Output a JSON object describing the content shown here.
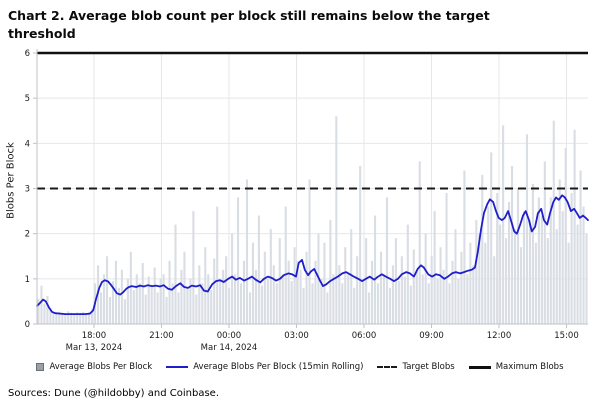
{
  "title": "Chart 2. Average blob count per block still remains below the target threshold",
  "source_note": "Sources: Dune (@hildobby) and Coinbase.",
  "colors": {
    "background": "#ffffff",
    "bar": "#d9dde4",
    "rolling_line": "#1e1ecb",
    "target_line": "#1a1a1a",
    "maximum_line": "#111111",
    "grid": "#e7e7ea",
    "axis": "#c2c2c8",
    "tick_text": "#1a1a1a"
  },
  "legend": {
    "items": [
      {
        "label": "Average Blobs Per Block",
        "marker": "square",
        "color": "#9aa0a6"
      },
      {
        "label": "Average Blobs Per Block (15min Rolling)",
        "marker": "line",
        "color": "#1e1ecb"
      },
      {
        "label": "Target Blobs",
        "marker": "dashed-line",
        "color": "#1a1a1a"
      },
      {
        "label": "Maximum Blobs",
        "marker": "solid-line",
        "color": "#111111"
      }
    ]
  },
  "chart_data": {
    "type": "bar",
    "title": "Chart 2. Average blob count per block still remains below the target threshold",
    "xlabel": "",
    "ylabel": "Blobs Per Block",
    "ylim": [
      0,
      6
    ],
    "yticks": [
      0,
      1,
      2,
      3,
      4,
      5,
      6
    ],
    "grid": true,
    "legend_position": "bottom",
    "target_blobs": 3,
    "maximum_blobs": 6,
    "xticks": [
      {
        "label": "18:00",
        "t": 0.1034,
        "sub": "Mar 13, 2024"
      },
      {
        "label": "21:00",
        "t": 0.2259
      },
      {
        "label": "00:00",
        "t": 0.3484,
        "sub": "Mar 14, 2024"
      },
      {
        "label": "03:00",
        "t": 0.471
      },
      {
        "label": "06:00",
        "t": 0.5935
      },
      {
        "label": "09:00",
        "t": 0.716
      },
      {
        "label": "12:00",
        "t": 0.8385
      },
      {
        "label": "15:00",
        "t": 0.961
      }
    ],
    "series": [
      {
        "name": "Average Blobs Per Block",
        "type": "bar",
        "color": "#d9dde4",
        "values": [
          0.55,
          0.85,
          0.45,
          0.62,
          0.35,
          0.26,
          0.24,
          0.27,
          0.25,
          0.24,
          0.28,
          0.25,
          0.24,
          0.26,
          0.25,
          0.27,
          0.24,
          0.26,
          0.34,
          0.9,
          1.3,
          0.7,
          1.1,
          1.5,
          0.6,
          0.95,
          1.4,
          0.8,
          1.2,
          0.55,
          1.0,
          1.6,
          0.75,
          1.1,
          0.9,
          1.35,
          0.65,
          1.05,
          0.85,
          1.25,
          0.7,
          1.0,
          1.1,
          0.6,
          1.4,
          0.9,
          2.2,
          0.7,
          1.2,
          1.6,
          0.8,
          1.0,
          2.5,
          0.65,
          1.3,
          0.9,
          1.7,
          1.1,
          0.75,
          1.45,
          2.6,
          0.95,
          1.2,
          1.5,
          0.8,
          2.0,
          1.1,
          2.8,
          0.9,
          1.4,
          3.2,
          0.7,
          1.8,
          1.2,
          2.4,
          0.85,
          1.6,
          1.0,
          2.1,
          1.3,
          0.9,
          1.9,
          1.1,
          2.6,
          1.4,
          0.95,
          1.7,
          1.4,
          1.2,
          0.8,
          1.6,
          3.2,
          0.9,
          1.4,
          2.0,
          1.0,
          1.8,
          0.7,
          2.3,
          1.1,
          4.6,
          1.3,
          0.9,
          1.7,
          1.1,
          2.1,
          0.8,
          1.5,
          3.5,
          1.0,
          1.9,
          0.7,
          1.4,
          2.4,
          0.9,
          1.6,
          1.1,
          2.8,
          0.8,
          1.3,
          1.9,
          0.95,
          1.5,
          1.05,
          2.2,
          0.85,
          1.65,
          1.2,
          3.6,
          1.1,
          2.0,
          0.9,
          1.5,
          2.5,
          1.0,
          1.7,
          1.2,
          2.9,
          0.9,
          1.4,
          2.1,
          1.0,
          1.6,
          3.4,
          1.1,
          1.8,
          1.3,
          2.3,
          2.0,
          3.3,
          1.8,
          2.6,
          3.8,
          1.5,
          2.9,
          2.2,
          4.4,
          1.9,
          2.7,
          3.5,
          2.1,
          3.0,
          1.7,
          2.5,
          4.2,
          2.3,
          3.1,
          1.8,
          2.8,
          2.4,
          3.6,
          1.9,
          2.8,
          4.5,
          2.1,
          3.2,
          2.5,
          3.9,
          1.8,
          2.9,
          4.3,
          2.2,
          3.4,
          2.6,
          2.0
        ]
      },
      {
        "name": "Average Blobs Per Block (15min Rolling)",
        "type": "line",
        "color": "#1e1ecb",
        "points": [
          [
            0.0,
            0.4
          ],
          [
            0.005,
            0.46
          ],
          [
            0.011,
            0.54
          ],
          [
            0.016,
            0.5
          ],
          [
            0.022,
            0.36
          ],
          [
            0.027,
            0.27
          ],
          [
            0.033,
            0.24
          ],
          [
            0.042,
            0.23
          ],
          [
            0.051,
            0.22
          ],
          [
            0.06,
            0.22
          ],
          [
            0.069,
            0.22
          ],
          [
            0.078,
            0.22
          ],
          [
            0.087,
            0.22
          ],
          [
            0.096,
            0.23
          ],
          [
            0.102,
            0.3
          ],
          [
            0.107,
            0.55
          ],
          [
            0.113,
            0.8
          ],
          [
            0.118,
            0.93
          ],
          [
            0.123,
            0.97
          ],
          [
            0.129,
            0.94
          ],
          [
            0.134,
            0.87
          ],
          [
            0.14,
            0.77
          ],
          [
            0.145,
            0.68
          ],
          [
            0.151,
            0.65
          ],
          [
            0.156,
            0.7
          ],
          [
            0.162,
            0.78
          ],
          [
            0.167,
            0.82
          ],
          [
            0.172,
            0.84
          ],
          [
            0.18,
            0.82
          ],
          [
            0.187,
            0.85
          ],
          [
            0.194,
            0.83
          ],
          [
            0.201,
            0.86
          ],
          [
            0.209,
            0.84
          ],
          [
            0.216,
            0.85
          ],
          [
            0.223,
            0.83
          ],
          [
            0.23,
            0.86
          ],
          [
            0.238,
            0.78
          ],
          [
            0.245,
            0.76
          ],
          [
            0.252,
            0.84
          ],
          [
            0.26,
            0.9
          ],
          [
            0.267,
            0.82
          ],
          [
            0.274,
            0.8
          ],
          [
            0.281,
            0.85
          ],
          [
            0.289,
            0.83
          ],
          [
            0.296,
            0.86
          ],
          [
            0.303,
            0.74
          ],
          [
            0.31,
            0.72
          ],
          [
            0.318,
            0.88
          ],
          [
            0.325,
            0.95
          ],
          [
            0.332,
            0.97
          ],
          [
            0.339,
            0.93
          ],
          [
            0.347,
            1.0
          ],
          [
            0.354,
            1.05
          ],
          [
            0.361,
            0.98
          ],
          [
            0.368,
            1.02
          ],
          [
            0.376,
            0.96
          ],
          [
            0.383,
            1.0
          ],
          [
            0.39,
            1.05
          ],
          [
            0.397,
            0.98
          ],
          [
            0.405,
            0.92
          ],
          [
            0.412,
            1.0
          ],
          [
            0.419,
            1.05
          ],
          [
            0.426,
            1.02
          ],
          [
            0.434,
            0.96
          ],
          [
            0.441,
            1.0
          ],
          [
            0.448,
            1.08
          ],
          [
            0.456,
            1.12
          ],
          [
            0.463,
            1.1
          ],
          [
            0.47,
            1.05
          ],
          [
            0.475,
            1.35
          ],
          [
            0.481,
            1.42
          ],
          [
            0.486,
            1.2
          ],
          [
            0.492,
            1.08
          ],
          [
            0.497,
            1.16
          ],
          [
            0.503,
            1.22
          ],
          [
            0.508,
            1.1
          ],
          [
            0.514,
            0.95
          ],
          [
            0.519,
            0.84
          ],
          [
            0.525,
            0.88
          ],
          [
            0.532,
            0.95
          ],
          [
            0.539,
            1.0
          ],
          [
            0.546,
            1.05
          ],
          [
            0.554,
            1.12
          ],
          [
            0.561,
            1.15
          ],
          [
            0.568,
            1.1
          ],
          [
            0.575,
            1.05
          ],
          [
            0.583,
            1.0
          ],
          [
            0.59,
            0.95
          ],
          [
            0.597,
            1.0
          ],
          [
            0.604,
            1.05
          ],
          [
            0.612,
            0.98
          ],
          [
            0.619,
            1.05
          ],
          [
            0.626,
            1.1
          ],
          [
            0.633,
            1.05
          ],
          [
            0.641,
            1.0
          ],
          [
            0.648,
            0.95
          ],
          [
            0.655,
            1.0
          ],
          [
            0.662,
            1.1
          ],
          [
            0.67,
            1.15
          ],
          [
            0.677,
            1.12
          ],
          [
            0.684,
            1.05
          ],
          [
            0.691,
            1.22
          ],
          [
            0.697,
            1.3
          ],
          [
            0.702,
            1.25
          ],
          [
            0.71,
            1.1
          ],
          [
            0.717,
            1.05
          ],
          [
            0.724,
            1.1
          ],
          [
            0.731,
            1.08
          ],
          [
            0.739,
            1.0
          ],
          [
            0.746,
            1.05
          ],
          [
            0.753,
            1.12
          ],
          [
            0.76,
            1.15
          ],
          [
            0.768,
            1.12
          ],
          [
            0.775,
            1.15
          ],
          [
            0.782,
            1.18
          ],
          [
            0.789,
            1.2
          ],
          [
            0.795,
            1.25
          ],
          [
            0.8,
            1.6
          ],
          [
            0.806,
            2.1
          ],
          [
            0.811,
            2.45
          ],
          [
            0.817,
            2.65
          ],
          [
            0.822,
            2.76
          ],
          [
            0.828,
            2.7
          ],
          [
            0.833,
            2.5
          ],
          [
            0.838,
            2.35
          ],
          [
            0.844,
            2.3
          ],
          [
            0.849,
            2.35
          ],
          [
            0.855,
            2.5
          ],
          [
            0.86,
            2.3
          ],
          [
            0.866,
            2.05
          ],
          [
            0.871,
            2.0
          ],
          [
            0.877,
            2.2
          ],
          [
            0.882,
            2.4
          ],
          [
            0.887,
            2.5
          ],
          [
            0.893,
            2.3
          ],
          [
            0.898,
            2.05
          ],
          [
            0.904,
            2.15
          ],
          [
            0.909,
            2.45
          ],
          [
            0.915,
            2.55
          ],
          [
            0.92,
            2.3
          ],
          [
            0.926,
            2.2
          ],
          [
            0.931,
            2.45
          ],
          [
            0.937,
            2.7
          ],
          [
            0.942,
            2.8
          ],
          [
            0.947,
            2.75
          ],
          [
            0.953,
            2.85
          ],
          [
            0.958,
            2.8
          ],
          [
            0.963,
            2.7
          ],
          [
            0.969,
            2.5
          ],
          [
            0.975,
            2.55
          ],
          [
            0.98,
            2.45
          ],
          [
            0.985,
            2.35
          ],
          [
            0.991,
            2.4
          ],
          [
            0.996,
            2.35
          ],
          [
            1.0,
            2.3
          ]
        ]
      },
      {
        "name": "Target Blobs",
        "type": "hline",
        "y": 3,
        "style": "dashed",
        "color": "#1a1a1a"
      },
      {
        "name": "Maximum Blobs",
        "type": "hline",
        "y": 6,
        "style": "solid",
        "color": "#111111"
      }
    ]
  }
}
